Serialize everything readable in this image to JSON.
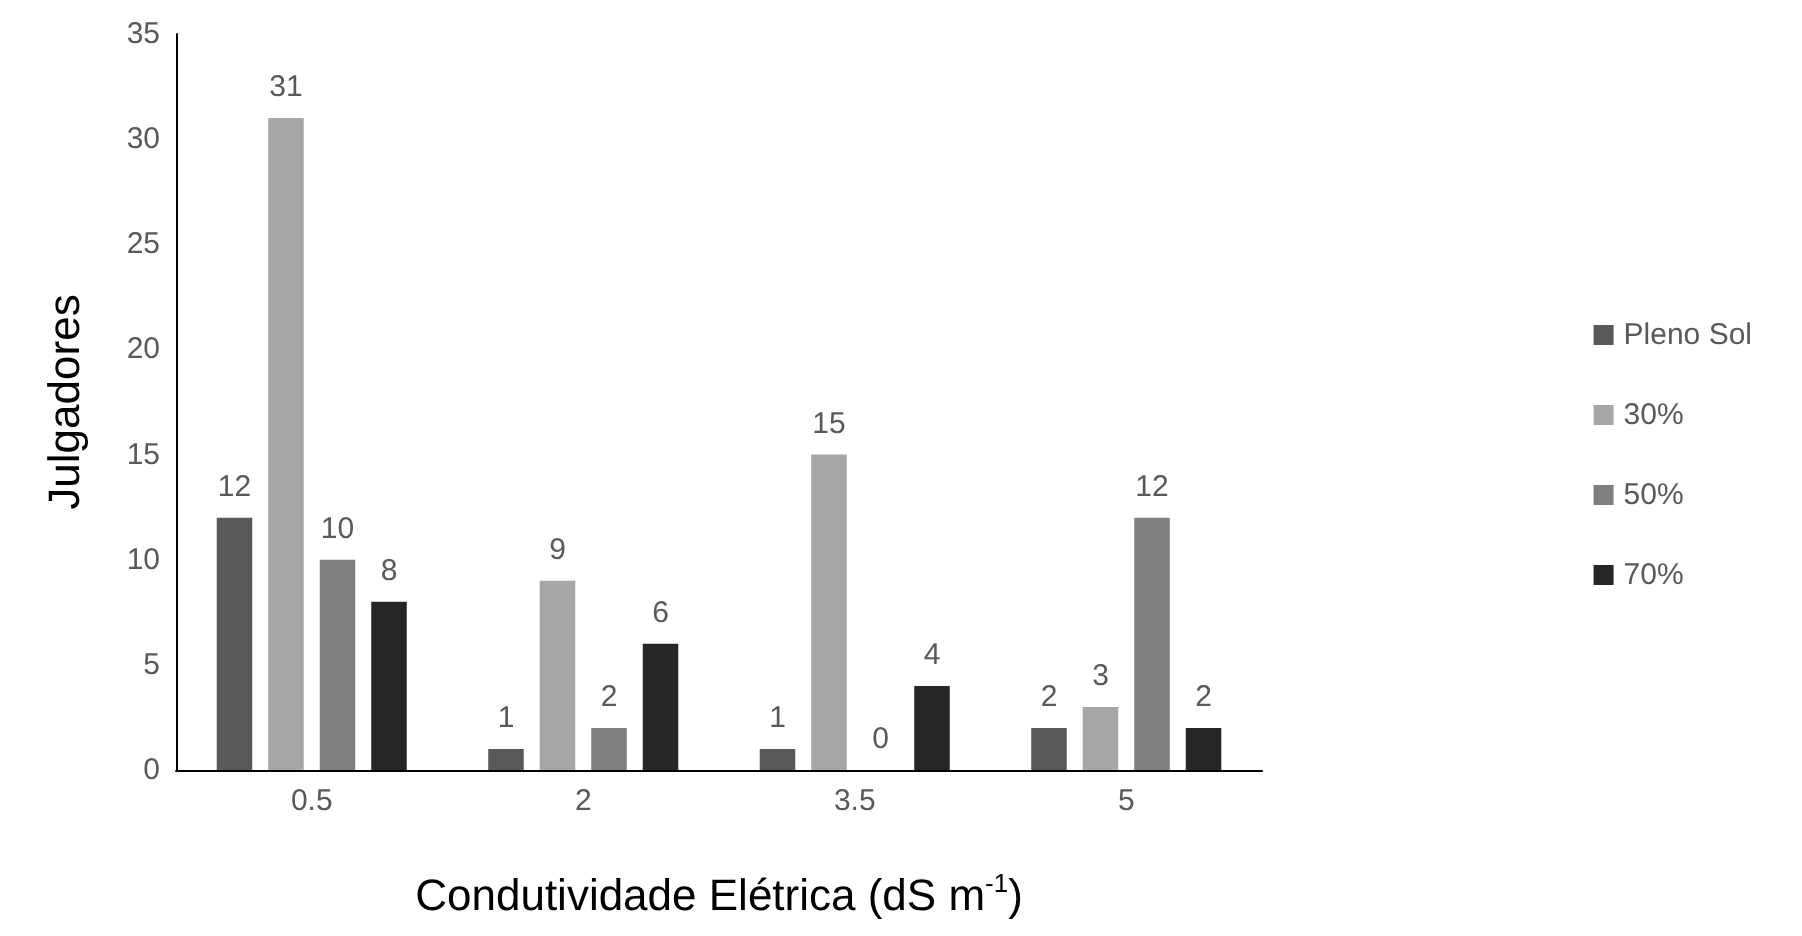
{
  "chart_data": {
    "type": "bar",
    "xlabel": "Condutividade Elétrica (dS m$^{-1}$)",
    "ylabel": "Julgadores",
    "categories": [
      "0.5",
      "2",
      "3.5",
      "5"
    ],
    "series": [
      {
        "name": "Pleno Sol",
        "color": "#595959",
        "values": [
          12,
          1,
          1,
          2
        ]
      },
      {
        "name": "30%",
        "color": "#a6a6a6",
        "values": [
          31,
          9,
          15,
          3
        ]
      },
      {
        "name": "50%",
        "color": "#7f7f7f",
        "values": [
          10,
          2,
          0,
          12
        ]
      },
      {
        "name": "70%",
        "color": "#262626",
        "values": [
          8,
          6,
          4,
          2
        ]
      }
    ],
    "ylim": [
      0,
      35
    ],
    "yticks": [
      0,
      5,
      10,
      15,
      20,
      25,
      30,
      35
    ],
    "grid": false,
    "legend": "right",
    "data_labels": true
  }
}
